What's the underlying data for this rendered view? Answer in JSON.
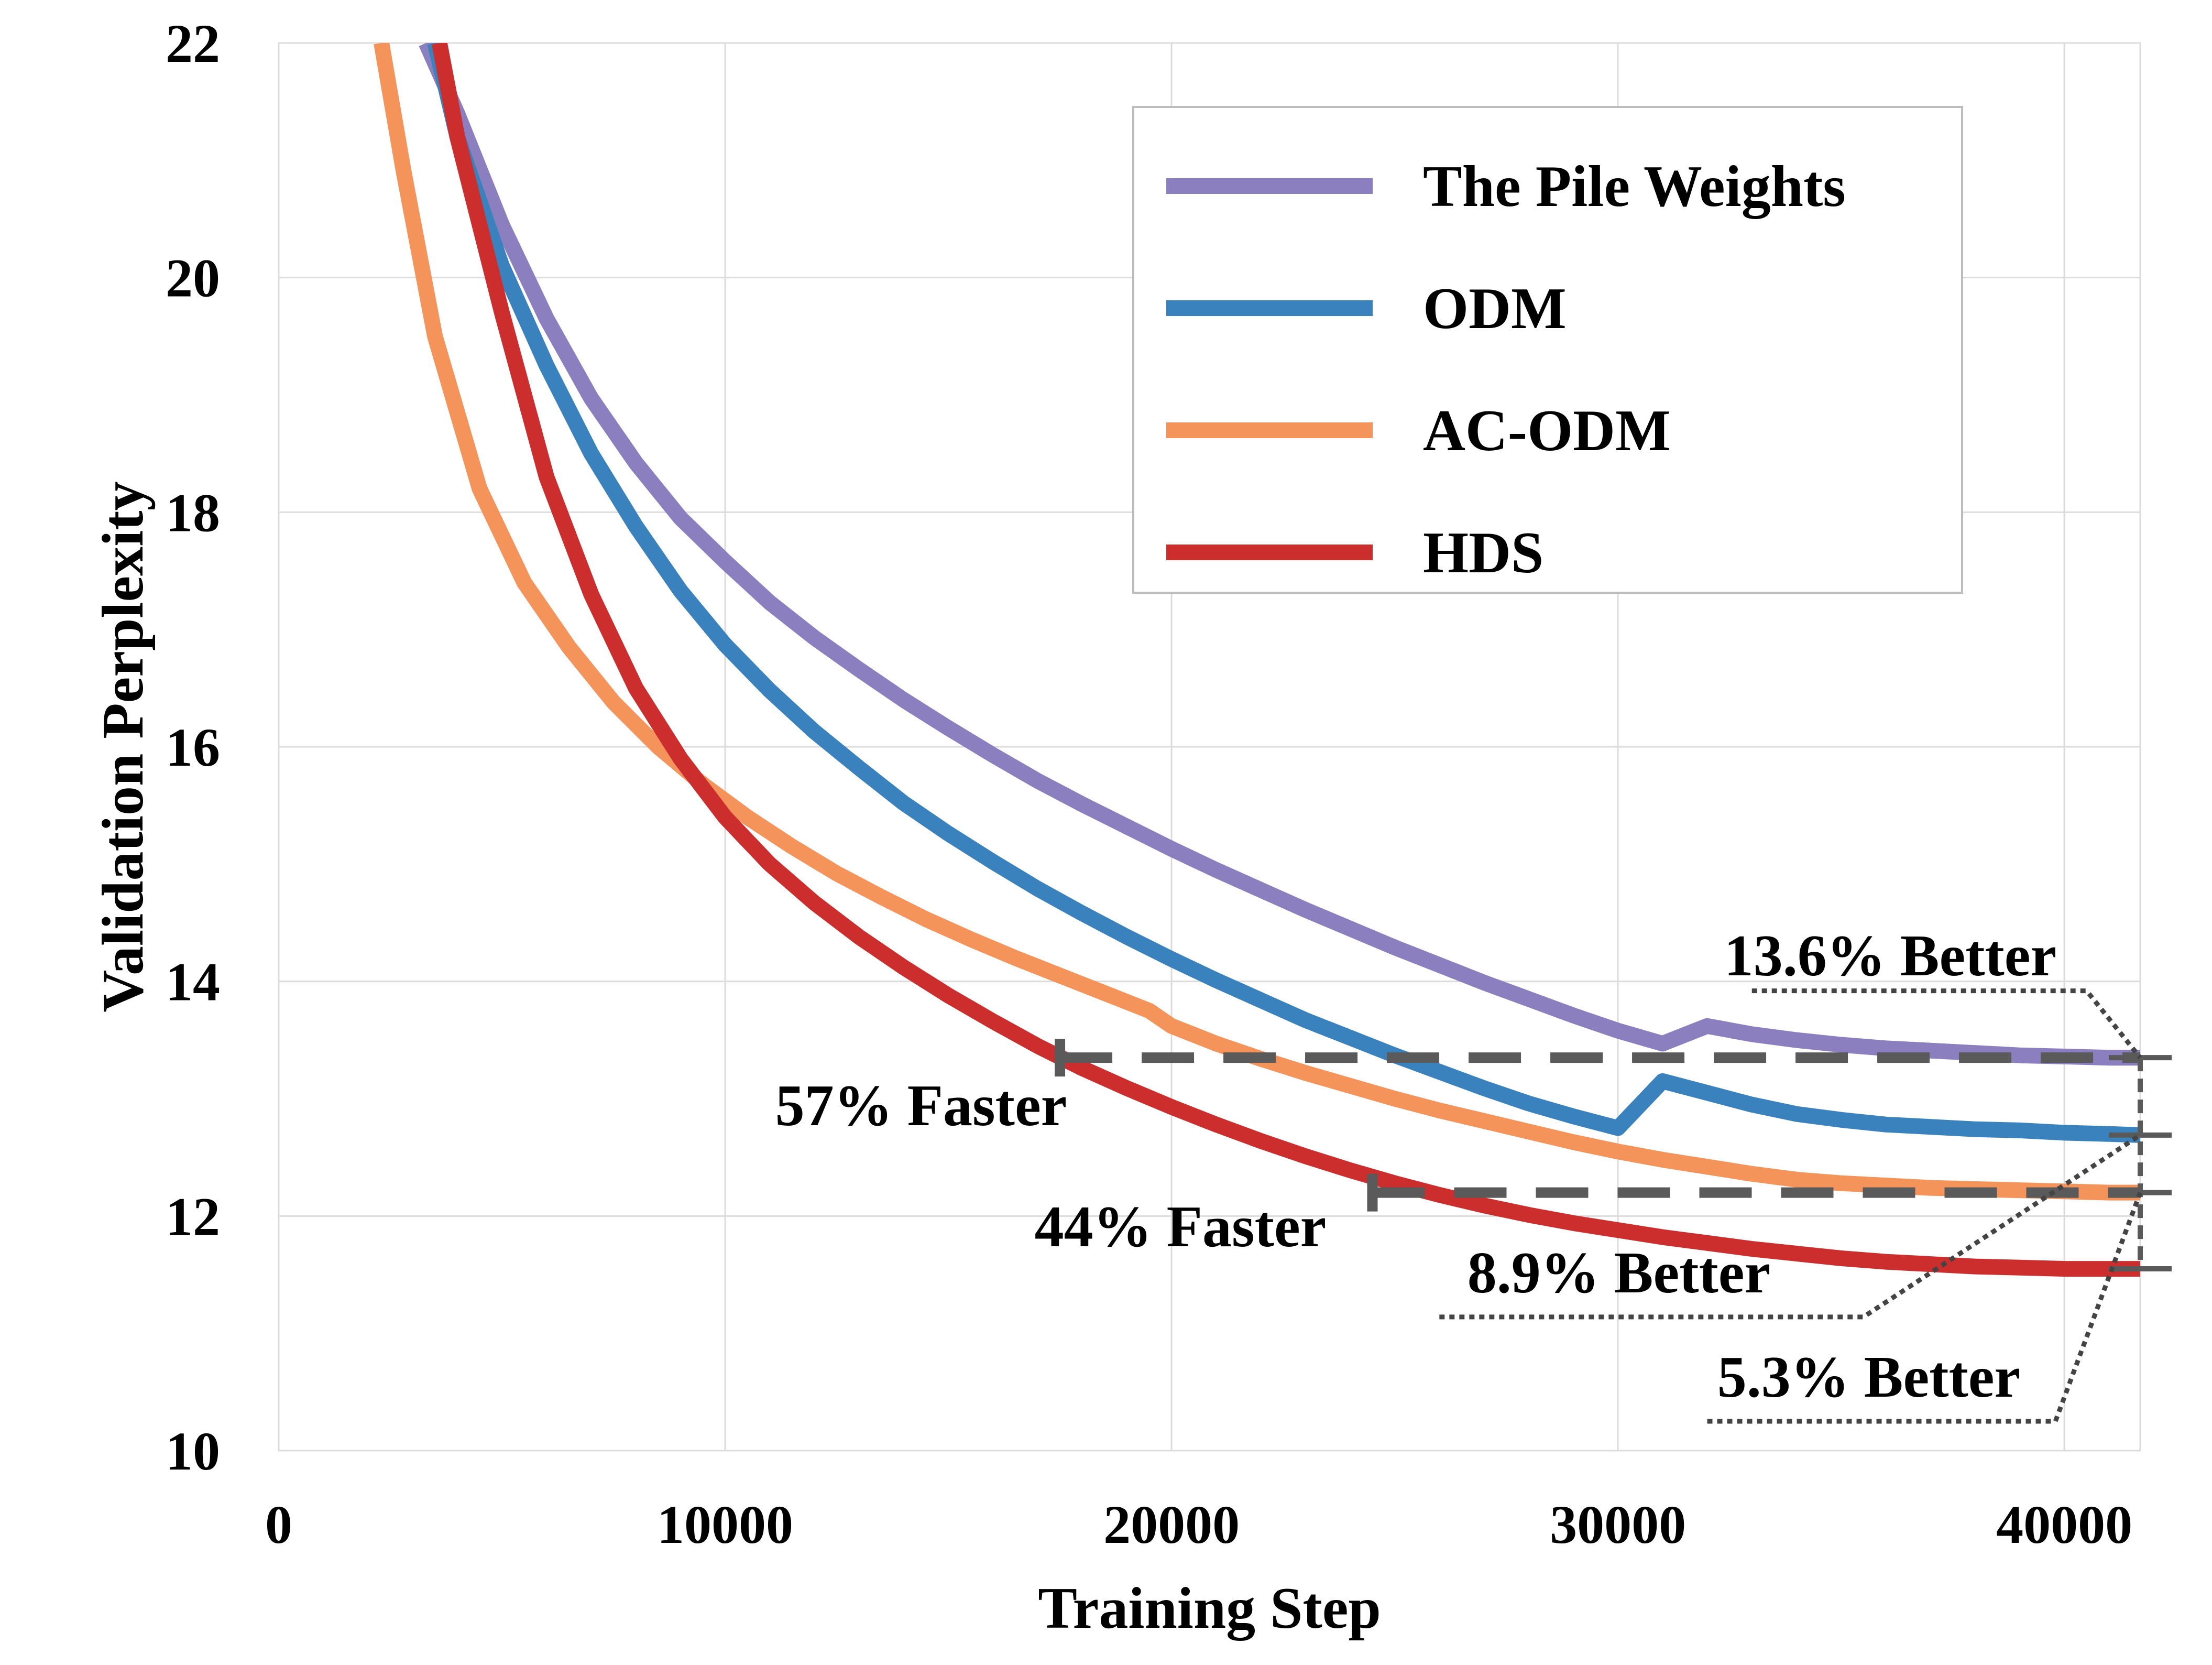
{
  "chart_data": {
    "type": "line",
    "xlabel": "Training Step",
    "ylabel": "Validation Perplexity",
    "xlim": [
      0,
      41700
    ],
    "ylim": [
      10,
      22
    ],
    "xticks": [
      0,
      10000,
      20000,
      30000,
      40000
    ],
    "yticks": [
      10,
      12,
      14,
      16,
      18,
      20,
      22
    ],
    "grid": true,
    "legend_position": "top-right",
    "series": [
      {
        "name": "The Pile Weights",
        "color": "#8c7fbf",
        "x": [
          3300,
          4000,
          5000,
          6000,
          7000,
          8000,
          9000,
          10000,
          11000,
          12000,
          13000,
          14000,
          15000,
          16000,
          17000,
          18000,
          19000,
          20000,
          21000,
          22000,
          23000,
          24000,
          25000,
          26000,
          27000,
          28000,
          29000,
          30000,
          31000,
          32000,
          33000,
          34000,
          35000,
          36000,
          37000,
          38000,
          39000,
          40000,
          41000,
          41700
        ],
        "y": [
          22.0,
          21.4,
          20.45,
          19.65,
          18.97,
          18.42,
          17.95,
          17.58,
          17.23,
          16.93,
          16.66,
          16.4,
          16.16,
          15.93,
          15.71,
          15.51,
          15.32,
          15.13,
          14.95,
          14.78,
          14.61,
          14.45,
          14.29,
          14.14,
          13.99,
          13.85,
          13.71,
          13.58,
          13.47,
          13.62,
          13.55,
          13.5,
          13.46,
          13.43,
          13.41,
          13.39,
          13.37,
          13.36,
          13.35,
          13.35
        ]
      },
      {
        "name": "ODM",
        "color": "#3a82bd",
        "x": [
          3500,
          4000,
          5000,
          6000,
          7000,
          8000,
          9000,
          10000,
          11000,
          12000,
          13000,
          14000,
          15000,
          16000,
          17000,
          18000,
          19000,
          20000,
          21000,
          22000,
          23000,
          24000,
          25000,
          26000,
          27000,
          28000,
          29000,
          30000,
          31000,
          32000,
          33000,
          34000,
          35000,
          36000,
          37000,
          38000,
          39000,
          40000,
          41000,
          41700
        ],
        "y": [
          22.0,
          21.2,
          20.1,
          19.25,
          18.5,
          17.88,
          17.33,
          16.87,
          16.48,
          16.13,
          15.82,
          15.52,
          15.26,
          15.02,
          14.79,
          14.58,
          14.38,
          14.19,
          14.01,
          13.84,
          13.67,
          13.52,
          13.37,
          13.23,
          13.09,
          12.96,
          12.85,
          12.75,
          13.15,
          13.05,
          12.95,
          12.87,
          12.82,
          12.78,
          12.76,
          12.74,
          12.73,
          12.71,
          12.7,
          12.69
        ]
      },
      {
        "name": "AC-ODM",
        "color": "#f4935a",
        "x": [
          2300,
          2800,
          3500,
          4500,
          5500,
          6500,
          7500,
          8500,
          9500,
          10500,
          11500,
          12500,
          13500,
          14500,
          15500,
          16500,
          17500,
          18500,
          19500,
          20000,
          21000,
          22000,
          23000,
          24000,
          25000,
          26000,
          27000,
          28000,
          29000,
          30000,
          31000,
          32000,
          33000,
          34000,
          35000,
          36000,
          37000,
          38000,
          39000,
          40000,
          41000,
          41700
        ],
        "y": [
          22.0,
          20.9,
          19.5,
          18.2,
          17.4,
          16.85,
          16.38,
          16.0,
          15.68,
          15.4,
          15.15,
          14.92,
          14.72,
          14.53,
          14.36,
          14.2,
          14.05,
          13.9,
          13.75,
          13.62,
          13.47,
          13.34,
          13.22,
          13.11,
          13.0,
          12.9,
          12.81,
          12.72,
          12.63,
          12.55,
          12.48,
          12.42,
          12.36,
          12.31,
          12.28,
          12.26,
          12.24,
          12.23,
          12.22,
          12.21,
          12.2,
          12.2
        ]
      },
      {
        "name": "HDS",
        "color": "#cc2e2e",
        "x": [
          3600,
          4000,
          5000,
          6000,
          7000,
          8000,
          9000,
          10000,
          11000,
          12000,
          13000,
          14000,
          15000,
          16000,
          17000,
          18000,
          19000,
          20000,
          21000,
          22000,
          23000,
          24000,
          25000,
          26000,
          27000,
          28000,
          29000,
          30000,
          31000,
          32000,
          33000,
          34000,
          35000,
          36000,
          37000,
          38000,
          39000,
          40000,
          41000,
          41700
        ],
        "y": [
          22.0,
          21.2,
          19.7,
          18.3,
          17.3,
          16.5,
          15.9,
          15.4,
          15.0,
          14.67,
          14.38,
          14.12,
          13.88,
          13.66,
          13.45,
          13.26,
          13.09,
          12.93,
          12.78,
          12.64,
          12.51,
          12.39,
          12.28,
          12.18,
          12.09,
          12.01,
          11.94,
          11.88,
          11.82,
          11.77,
          11.72,
          11.68,
          11.64,
          11.61,
          11.59,
          11.57,
          11.56,
          11.55,
          11.55,
          11.55
        ]
      }
    ],
    "annotations": [
      {
        "text": "57% Faster"
      },
      {
        "text": "44% Faster"
      },
      {
        "text": "13.6% Better"
      },
      {
        "text": "8.9% Better"
      },
      {
        "text": "5.3% Better"
      }
    ],
    "reference_lines": [
      {
        "x_start": 17500,
        "x_end": 41700,
        "y": 13.35
      },
      {
        "x_start": 24500,
        "x_end": 41700,
        "y": 12.2
      }
    ],
    "bracket": {
      "x": 41700,
      "y_values": [
        13.35,
        12.69,
        12.2,
        11.55
      ]
    },
    "annotation_pointers": [
      {
        "from_x": 33000,
        "from_y": 13.92,
        "via_x": 40500,
        "to_y": 13.35
      },
      {
        "from_x": 26000,
        "from_y": 11.14,
        "via_x": 35500,
        "to_y": 12.69
      },
      {
        "from_x": 32000,
        "from_y": 10.25,
        "via_x": 39800,
        "to_y": 12.2
      }
    ]
  }
}
